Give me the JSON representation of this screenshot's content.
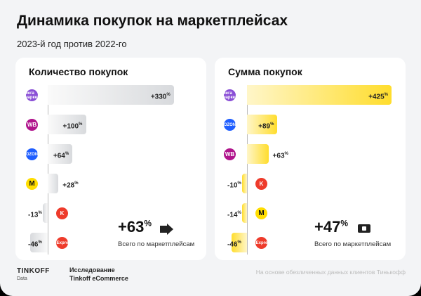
{
  "title": "Динамика покупок на маркетплейсах",
  "subtitle": "2023-й год против 2022-го",
  "chart_data": [
    {
      "type": "bar",
      "orientation": "horizontal",
      "title": "Количество покупок",
      "unit": "%",
      "categories": [
        "Мегамаркет",
        "Wildberries",
        "Ozon",
        "Яндекс Маркет",
        "Казань Экспресс",
        "AliExpress"
      ],
      "logo_labels": [
        "мега маркет",
        "WB",
        "OZON",
        "М",
        "K",
        "AliExpress"
      ],
      "logo_colors": [
        "#8a4fd6",
        "#b0148c",
        "#1f5eff",
        "#ffdd00",
        "#ee3b2b",
        "#ee3b2b"
      ],
      "values": [
        330,
        100,
        64,
        28,
        -13,
        -46
      ],
      "labels": [
        "+330",
        "+100",
        "+64",
        "+28",
        "-13",
        "-46"
      ],
      "total": {
        "value": "+63",
        "suffix": "%",
        "caption": "Всего по маркетплейсам",
        "icon": "hand-pointing-icon"
      },
      "bar_color": "#d8dadd"
    },
    {
      "type": "bar",
      "orientation": "horizontal",
      "title": "Сумма покупок",
      "unit": "%",
      "categories": [
        "Мегамаркет",
        "Ozon",
        "Wildberries",
        "Казань Экспресс",
        "Яндекс Маркет",
        "AliExpress"
      ],
      "logo_labels": [
        "мега маркет",
        "OZON",
        "WB",
        "K",
        "М",
        "AliExpress"
      ],
      "logo_colors": [
        "#8a4fd6",
        "#1f5eff",
        "#b0148c",
        "#ee3b2b",
        "#ffdd00",
        "#ee3b2b"
      ],
      "values": [
        425,
        89,
        63,
        -10,
        -14,
        -46
      ],
      "labels": [
        "+425",
        "+89",
        "+63",
        "-10",
        "-14",
        "-46"
      ],
      "total": {
        "value": "+47",
        "suffix": "%",
        "caption": "Всего по маркетплейсам",
        "icon": "banknote-icon"
      },
      "bar_color": "#ffdd2d"
    }
  ],
  "footer": {
    "brand": "TINKOFF",
    "brand_sub": "Data",
    "research_line1": "Исследование",
    "research_line2": "Tinkoff eCommerce",
    "note": "На основе обезличенных данных клиентов Тинькофф"
  }
}
